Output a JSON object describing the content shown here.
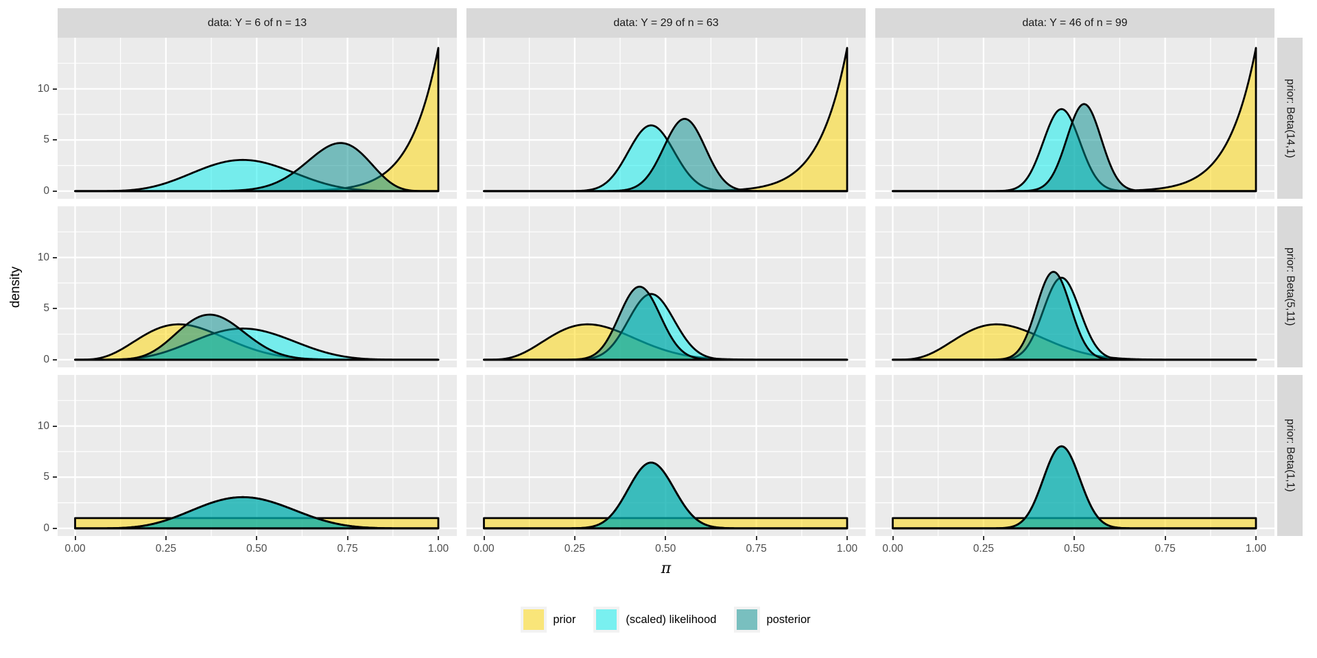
{
  "chart_data": {
    "type": "area",
    "description": "3x3 faceted grid of Beta density curves showing Bayesian updating (prior, scaled likelihood, posterior) for a Beta-Binomial model",
    "xlabel": "π",
    "ylabel": "density",
    "x_range": [
      0,
      1
    ],
    "y_axis_range": [
      -0.77,
      15.0
    ],
    "x_tick_values": [
      0,
      0.25,
      0.5,
      0.75,
      1
    ],
    "x_tick_labels": [
      "0.00",
      "0.25",
      "0.50",
      "0.75",
      "1.00"
    ],
    "x_minor_breaks": [
      0.125,
      0.375,
      0.625,
      0.875
    ],
    "y_tick_values": [
      0,
      5,
      10
    ],
    "y_tick_labels": [
      "0",
      "5",
      "10"
    ],
    "y_minor_breaks": [
      2.5,
      7.5,
      12.5
    ],
    "grid": true,
    "panel_background": "#EBEBEB",
    "strip_background": "#D9D9D9",
    "col_facets": [
      {
        "label": "data: Y = 6 of n = 13",
        "Y": 6,
        "n": 13
      },
      {
        "label": "data: Y = 29 of n = 63",
        "Y": 29,
        "n": 63
      },
      {
        "label": "data: Y = 46 of n = 99",
        "Y": 46,
        "n": 99
      }
    ],
    "row_facets": [
      {
        "label": "prior: Beta(14,1)",
        "prior_alpha": 14,
        "prior_beta": 1
      },
      {
        "label": "prior: Beta(5,11)",
        "prior_alpha": 5,
        "prior_beta": 11
      },
      {
        "label": "prior: Beta(1,1)",
        "prior_alpha": 1,
        "prior_beta": 1
      }
    ],
    "series": [
      {
        "name": "prior",
        "fill": "#FFD700",
        "fill_alpha": 0.5,
        "rendered_color": "#F5E175",
        "outline": "#000000"
      },
      {
        "name": "(scaled) likelihood",
        "fill": "#00EEEE",
        "fill_alpha": 0.5,
        "rendered_color": "#7FECE5",
        "outline": "#000000"
      },
      {
        "name": "posterior",
        "fill": "#008B8B",
        "fill_alpha": 0.5,
        "rendered_color": "#7BB0AB",
        "outline": "#000000"
      }
    ],
    "cells": [
      {
        "row": 0,
        "col": 0,
        "prior": [
          14,
          1
        ],
        "likelihood": [
          7,
          8
        ],
        "posterior": [
          20,
          8
        ]
      },
      {
        "row": 0,
        "col": 1,
        "prior": [
          14,
          1
        ],
        "likelihood": [
          30,
          35
        ],
        "posterior": [
          43,
          35
        ]
      },
      {
        "row": 0,
        "col": 2,
        "prior": [
          14,
          1
        ],
        "likelihood": [
          47,
          54
        ],
        "posterior": [
          60,
          54
        ]
      },
      {
        "row": 1,
        "col": 0,
        "prior": [
          5,
          11
        ],
        "likelihood": [
          7,
          8
        ],
        "posterior": [
          11,
          18
        ]
      },
      {
        "row": 1,
        "col": 1,
        "prior": [
          5,
          11
        ],
        "likelihood": [
          30,
          35
        ],
        "posterior": [
          34,
          45
        ]
      },
      {
        "row": 1,
        "col": 2,
        "prior": [
          5,
          11
        ],
        "likelihood": [
          47,
          54
        ],
        "posterior": [
          51,
          64
        ]
      },
      {
        "row": 2,
        "col": 0,
        "prior": [
          1,
          1
        ],
        "likelihood": [
          7,
          8
        ],
        "posterior": [
          7,
          8
        ]
      },
      {
        "row": 2,
        "col": 1,
        "prior": [
          1,
          1
        ],
        "likelihood": [
          30,
          35
        ],
        "posterior": [
          30,
          35
        ]
      },
      {
        "row": 2,
        "col": 2,
        "prior": [
          1,
          1
        ],
        "likelihood": [
          47,
          54
        ],
        "posterior": [
          47,
          54
        ]
      }
    ],
    "legend_position": "bottom"
  }
}
